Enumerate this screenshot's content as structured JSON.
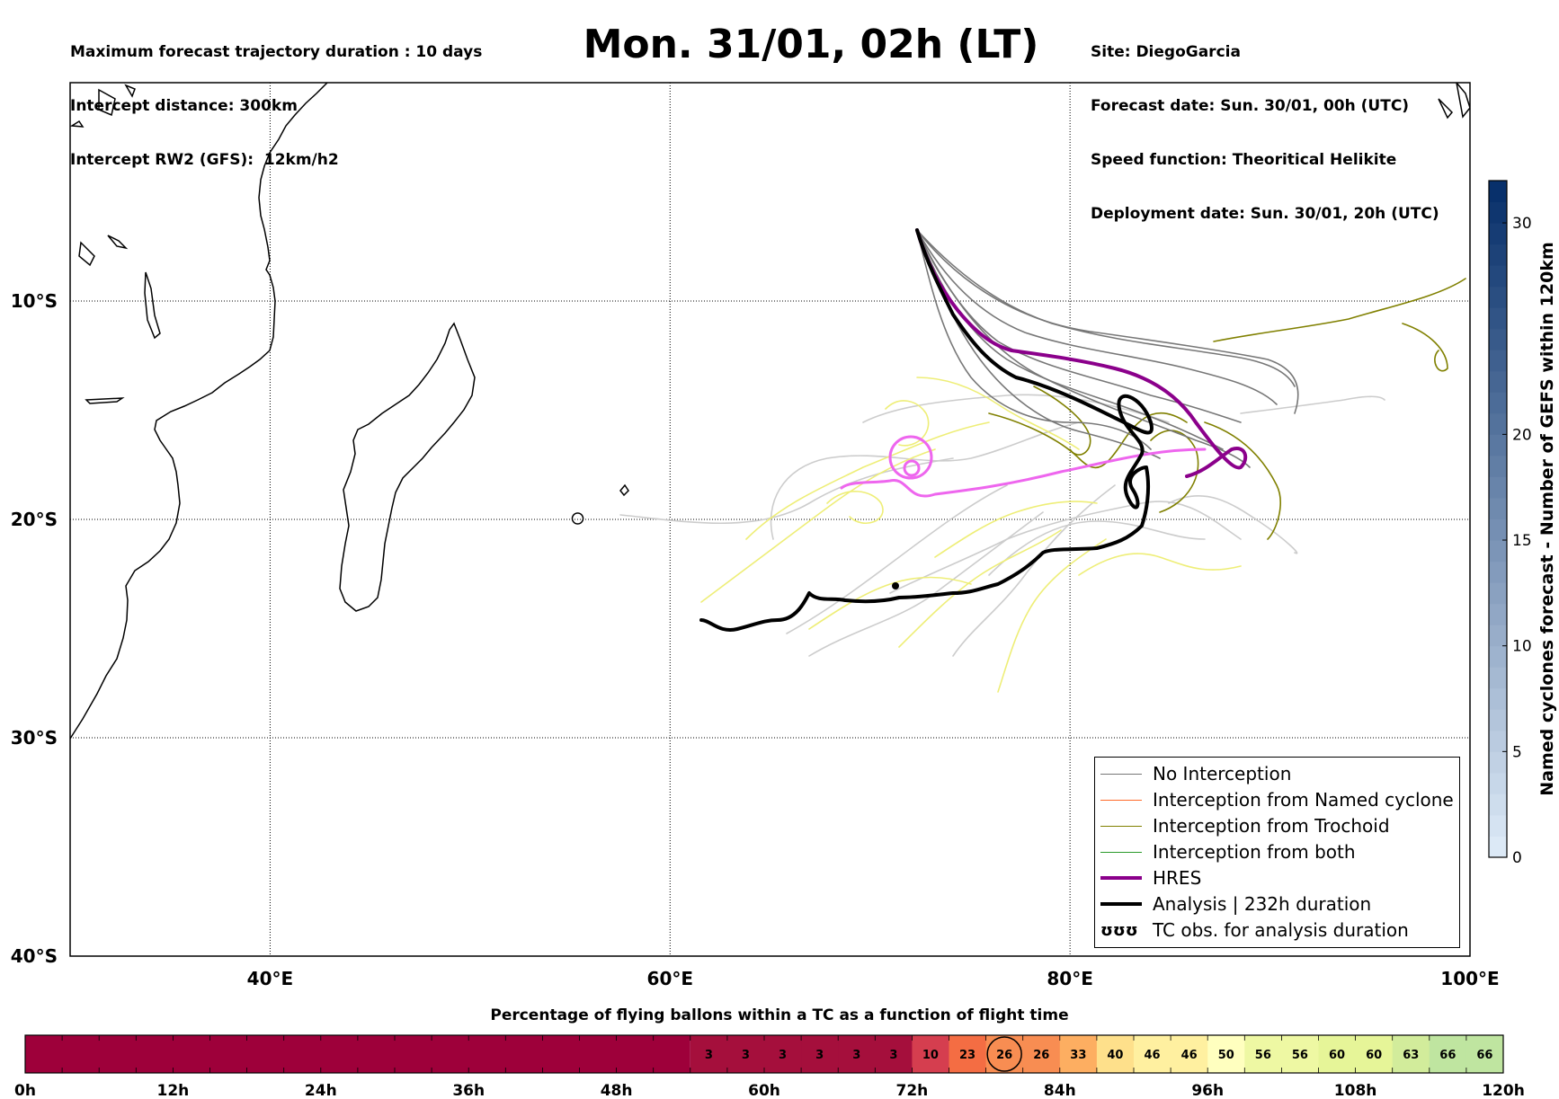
{
  "header": {
    "left_lines": [
      "Maximum forecast trajectory duration : 10 days",
      "Intercept distance: 300km",
      "Intercept RW2 (GFS):  12km/h2"
    ],
    "title": "Mon. 31/01, 02h (LT)",
    "right_lines": [
      "Site: DiegoGarcia",
      "Forecast date: Sun. 30/01, 00h (UTC)",
      "Speed function: Theoritical Helikite",
      "Deployment date: Sun. 30/01, 20h (UTC)"
    ]
  },
  "map": {
    "lon_range": [
      30,
      100
    ],
    "lat_range": [
      -40,
      0
    ],
    "lat_labels": [
      {
        "lat": -10,
        "label": "10°S"
      },
      {
        "lat": -20,
        "label": "20°S"
      },
      {
        "lat": -30,
        "label": "30°S"
      },
      {
        "lat": -40,
        "label": "40°S"
      }
    ],
    "lon_labels": [
      {
        "lon": 40,
        "label": "40°E"
      },
      {
        "lon": 60,
        "label": "60°E"
      },
      {
        "lon": 80,
        "label": "80°E"
      },
      {
        "lon": 100,
        "label": "100°E"
      }
    ],
    "grid": true,
    "colors": {
      "no_interception": "#777777",
      "named_cyclone": "#ff6a2a",
      "trochoid": "#808000",
      "both": "#2a9a2a",
      "hres": "#8b008b",
      "analysis": "#000000",
      "tc_obs": "#ee66ee",
      "light_gray": "#cccccc",
      "yellow": "#eeee77"
    }
  },
  "legend": {
    "items": [
      {
        "label": "No Interception",
        "kind": "line",
        "color": "#777777",
        "width": 1.5
      },
      {
        "label": "Interception from Named cyclone",
        "kind": "line",
        "color": "#ff6a2a",
        "width": 1.5
      },
      {
        "label": "Interception from Trochoid",
        "kind": "line",
        "color": "#808000",
        "width": 1.5
      },
      {
        "label": "Interception from both",
        "kind": "line",
        "color": "#2a9a2a",
        "width": 1.5
      },
      {
        "label": "HRES",
        "kind": "line",
        "color": "#8b008b",
        "width": 4
      },
      {
        "label": "Analysis | 232h duration",
        "kind": "line",
        "color": "#000000",
        "width": 4
      },
      {
        "label": "TC obs. for analysis duration",
        "kind": "symbol",
        "symbol": "ʊʊʊ"
      }
    ]
  },
  "right_colorbar": {
    "label": "Named cyclones forecast - Number of GEFS within 120km",
    "ticks": [
      {
        "value": 0,
        "label": "0"
      },
      {
        "value": 5,
        "label": "5"
      },
      {
        "value": 10,
        "label": "10"
      },
      {
        "value": 15,
        "label": "15"
      },
      {
        "value": 20,
        "label": "20"
      },
      {
        "value": 30,
        "label": "30"
      }
    ],
    "range": [
      0,
      32
    ],
    "color_low": "#dce9f6",
    "color_high": "#08306b"
  },
  "bottom_colorbar": {
    "title": "Percentage of flying ballons within a TC as a function of flight time",
    "range_hours": [
      0,
      120
    ],
    "ticks": [
      {
        "hour": 0,
        "label": "0h"
      },
      {
        "hour": 12,
        "label": "12h"
      },
      {
        "hour": 24,
        "label": "24h"
      },
      {
        "hour": 36,
        "label": "36h"
      },
      {
        "hour": 48,
        "label": "48h"
      },
      {
        "hour": 60,
        "label": "60h"
      },
      {
        "hour": 72,
        "label": "72h"
      },
      {
        "hour": 84,
        "label": "84h"
      },
      {
        "hour": 96,
        "label": "96h"
      },
      {
        "hour": 108,
        "label": "108h"
      },
      {
        "hour": 120,
        "label": "120h"
      }
    ],
    "empty_until_hour": 54,
    "empty_color": "#9e003a",
    "cells": [
      {
        "label": "3",
        "color": "#a50f3c"
      },
      {
        "label": "3",
        "color": "#a50f3c"
      },
      {
        "label": "3",
        "color": "#a50f3c"
      },
      {
        "label": "3",
        "color": "#a50f3c"
      },
      {
        "label": "3",
        "color": "#a50f3c"
      },
      {
        "label": "3",
        "color": "#a50f3c"
      },
      {
        "label": "10",
        "color": "#d53e4f"
      },
      {
        "label": "23",
        "color": "#f46d43"
      },
      {
        "label": "26",
        "color": "#f88d52"
      },
      {
        "label": "26",
        "color": "#f88d52"
      },
      {
        "label": "33",
        "color": "#fdae61"
      },
      {
        "label": "40",
        "color": "#fee08b"
      },
      {
        "label": "46",
        "color": "#fff0a0"
      },
      {
        "label": "46",
        "color": "#fff0a0"
      },
      {
        "label": "50",
        "color": "#ffffbf"
      },
      {
        "label": "56",
        "color": "#eef8a3"
      },
      {
        "label": "56",
        "color": "#eef8a3"
      },
      {
        "label": "60",
        "color": "#e6f598"
      },
      {
        "label": "60",
        "color": "#e6f598"
      },
      {
        "label": "63",
        "color": "#d2ec9b"
      },
      {
        "label": "66",
        "color": "#bfe5a0"
      },
      {
        "label": "66",
        "color": "#bfe5a0"
      }
    ],
    "current_cell_index": 8
  }
}
